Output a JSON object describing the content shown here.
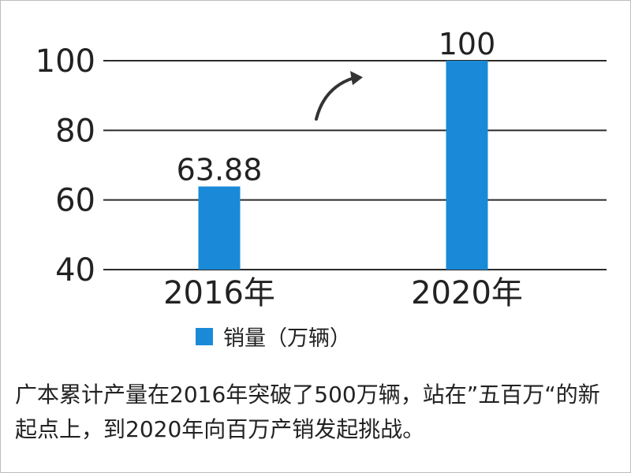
{
  "chart_data": {
    "type": "bar",
    "categories": [
      "2016年",
      "2020年"
    ],
    "series": [
      {
        "name": "销量（万辆）",
        "values": [
          63.88,
          100
        ]
      }
    ],
    "data_labels": [
      "63.88",
      "100"
    ],
    "ylim": [
      40,
      100
    ],
    "yticks": [
      40,
      60,
      80,
      100
    ],
    "grid": true,
    "legend": "bottom",
    "colors": {
      "bar": "#1a8ad8",
      "grid": "#2b2b2b",
      "arrow": "#333333",
      "text": "#222222"
    }
  },
  "caption": "广本累计产量在2016年突破了500万辆，站在”五百万“的新起点上，到2020年向百万产销发起挑战。"
}
